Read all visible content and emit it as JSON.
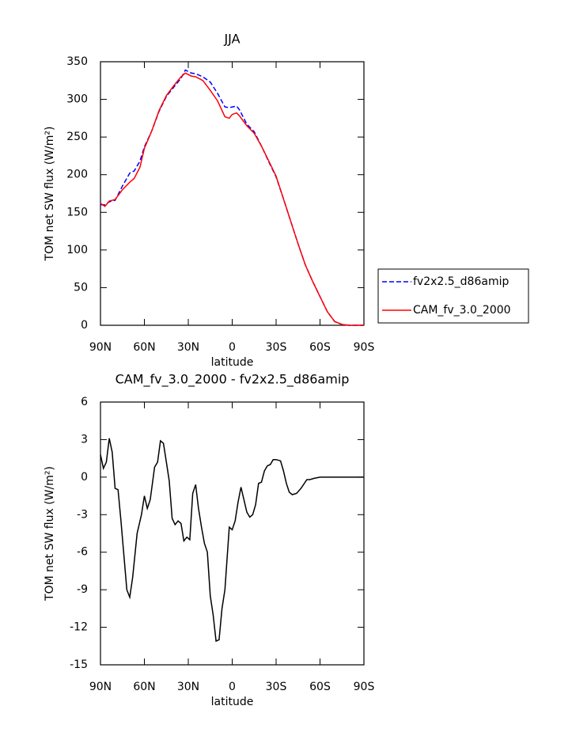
{
  "chart_data": [
    {
      "type": "line",
      "title": "JJA",
      "xlabel": "latitude",
      "ylabel": "TOM net SW flux (W/m²)",
      "x": [
        90,
        87,
        84,
        80,
        75,
        70,
        67,
        63,
        60,
        55,
        50,
        45,
        40,
        35,
        32,
        28,
        25,
        20,
        15,
        10,
        5,
        2,
        0,
        -3,
        -5,
        -10,
        -15,
        -20,
        -25,
        -30,
        -35,
        -40,
        -45,
        -50,
        -55,
        -60,
        -65,
        -70,
        -75,
        -80,
        -85,
        -90
      ],
      "series": [
        {
          "name": "fv2x2.5_d86amip",
          "color": "#0000ff",
          "linestyle": "dashed",
          "values": [
            160,
            160,
            164,
            166,
            185,
            202,
            205,
            218,
            237,
            258,
            284,
            304,
            316,
            328,
            339,
            335,
            334,
            330,
            323,
            308,
            290,
            289,
            290,
            291,
            286,
            267,
            257,
            238,
            217,
            197,
            168,
            138,
            108,
            80,
            58,
            38,
            18,
            5,
            1,
            0,
            0,
            0
          ]
        },
        {
          "name": "CAM_fv_3.0_2000",
          "color": "#ff0000",
          "linestyle": "solid",
          "values": [
            162,
            158,
            165,
            167,
            180,
            190,
            195,
            210,
            235,
            258,
            285,
            305,
            318,
            330,
            335,
            331,
            330,
            325,
            312,
            298,
            277,
            275,
            280,
            282,
            278,
            265,
            255,
            238,
            218,
            198,
            168,
            138,
            108,
            80,
            58,
            38,
            18,
            5,
            1,
            0,
            0,
            0
          ]
        }
      ],
      "xlim": [
        90,
        -90
      ],
      "xticks": [
        {
          "value": 90,
          "label": "90N"
        },
        {
          "value": 60,
          "label": "60N"
        },
        {
          "value": 30,
          "label": "30N"
        },
        0,
        {
          "value": -30,
          "label": "30S"
        },
        {
          "value": -60,
          "label": "60S"
        },
        {
          "value": -90,
          "label": "90S"
        }
      ],
      "ylim": [
        0,
        350
      ],
      "yticks": [
        0,
        50,
        100,
        150,
        200,
        250,
        300,
        350
      ],
      "legend": "outside-right"
    },
    {
      "type": "line",
      "title": "CAM_fv_3.0_2000 - fv2x2.5_d86amip",
      "xlabel": "latitude",
      "ylabel": "TOM net SW flux (W/m²)",
      "x": [
        90,
        88,
        86,
        84,
        82,
        80,
        78,
        76,
        72,
        70,
        68,
        65,
        62,
        60,
        58,
        56,
        53,
        51,
        49,
        47,
        45,
        43,
        41,
        39,
        37,
        35,
        33,
        31,
        29,
        27,
        25,
        23,
        21,
        19,
        17,
        15,
        13,
        11,
        9,
        7,
        5,
        2,
        0,
        -2,
        -4,
        -6,
        -8,
        -10,
        -12,
        -14,
        -16,
        -18,
        -20,
        -22,
        -24,
        -26,
        -28,
        -30,
        -33,
        -35,
        -37,
        -39,
        -41,
        -44,
        -47,
        -51,
        -53,
        -56,
        -60,
        -70,
        -80,
        -90
      ],
      "series": [
        {
          "color": "#000000",
          "linestyle": "solid",
          "values": [
            1.8,
            0.7,
            1.2,
            3.1,
            2,
            -0.9,
            -1.0,
            -3.5,
            -9.0,
            -9.6,
            -8,
            -4.5,
            -3,
            -1.5,
            -2.5,
            -1.8,
            0.8,
            1.2,
            2.9,
            2.7,
            1.2,
            -0.3,
            -3.3,
            -3.8,
            -3.5,
            -3.7,
            -5.1,
            -4.8,
            -5.0,
            -1.3,
            -0.6,
            -2.5,
            -4.0,
            -5.3,
            -6,
            -9.5,
            -11,
            -13.1,
            -13,
            -10.5,
            -9,
            -4,
            -4.2,
            -3.5,
            -2,
            -0.8,
            -1.8,
            -2.8,
            -3.2,
            -3.0,
            -2.2,
            -0.5,
            -0.4,
            0.5,
            0.9,
            1.0,
            1.4,
            1.4,
            1.3,
            0.5,
            -0.5,
            -1.2,
            -1.4,
            -1.3,
            -0.9,
            -0.2,
            -0.2,
            -0.1,
            0,
            0,
            0,
            0
          ]
        }
      ],
      "xlim": [
        90,
        -90
      ],
      "xticks": [
        {
          "value": 90,
          "label": "90N"
        },
        {
          "value": 60,
          "label": "60N"
        },
        {
          "value": 30,
          "label": "30N"
        },
        0,
        {
          "value": -30,
          "label": "30S"
        },
        {
          "value": -60,
          "label": "60S"
        },
        {
          "value": -90,
          "label": "90S"
        }
      ],
      "ylim": [
        -15,
        6
      ],
      "yticks": [
        -15,
        -12,
        -9,
        -6,
        -3,
        0,
        3,
        6
      ]
    }
  ]
}
